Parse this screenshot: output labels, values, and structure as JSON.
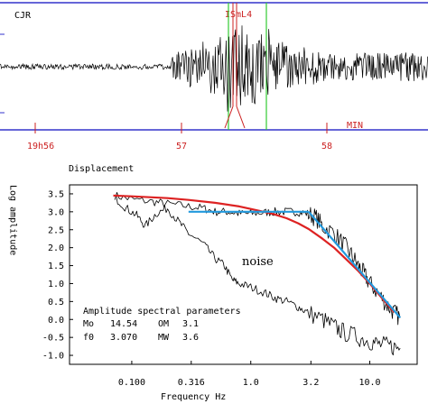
{
  "seismogram": {
    "station": "CJR",
    "pick_label": "ISmL4",
    "unit_label": "MIN",
    "time_ticks": [
      "19h56",
      "57",
      "58"
    ],
    "colors": {
      "trace": "#000000",
      "axis": "#3333cc",
      "tick": "#cc2222",
      "window": "#33cc33",
      "pick": "#cc2222"
    }
  },
  "chart_data": {
    "type": "line",
    "title": "Displacement",
    "xlabel": "Frequency  Hz",
    "ylabel": "Log  amplitude",
    "x_scale": "log",
    "xlim": [
      0.03,
      25
    ],
    "ylim": [
      -1.25,
      3.75
    ],
    "x_ticks": [
      "0.100",
      "0.316",
      "1.0",
      "3.2",
      "10.0"
    ],
    "y_ticks": [
      "3.5",
      "3.0",
      "2.5",
      "2.0",
      "1.5",
      "1.0",
      "0.5",
      "0.0",
      "-0.5",
      "-1.0"
    ],
    "series": [
      {
        "name": "signal-spectrum",
        "color": "#000000",
        "points": [
          [
            0.072,
            3.45
          ],
          [
            0.1,
            3.35
          ],
          [
            0.15,
            3.28
          ],
          [
            0.2,
            3.22
          ],
          [
            0.3,
            3.15
          ],
          [
            0.4,
            3.1
          ],
          [
            0.5,
            3.0
          ],
          [
            0.65,
            3.0
          ],
          [
            0.8,
            2.95
          ],
          [
            1.0,
            2.95
          ],
          [
            1.3,
            2.98
          ],
          [
            1.6,
            3.0
          ],
          [
            2.0,
            3.0
          ],
          [
            2.5,
            3.0
          ],
          [
            3.0,
            2.95
          ],
          [
            3.5,
            2.85
          ],
          [
            4.0,
            2.6
          ],
          [
            5.0,
            2.4
          ],
          [
            6.0,
            2.1
          ],
          [
            7.0,
            1.8
          ],
          [
            8.0,
            1.5
          ],
          [
            9.0,
            1.25
          ],
          [
            10.0,
            1.0
          ],
          [
            12.0,
            0.7
          ],
          [
            14.0,
            0.4
          ],
          [
            16.0,
            0.2
          ],
          [
            18.0,
            0.05
          ]
        ]
      },
      {
        "name": "noise",
        "color": "#000000",
        "points": [
          [
            0.072,
            3.4
          ],
          [
            0.09,
            3.1
          ],
          [
            0.11,
            2.9
          ],
          [
            0.13,
            2.6
          ],
          [
            0.16,
            2.95
          ],
          [
            0.2,
            3.1
          ],
          [
            0.25,
            2.7
          ],
          [
            0.3,
            2.4
          ],
          [
            0.4,
            2.1
          ],
          [
            0.5,
            1.7
          ],
          [
            0.6,
            1.5
          ],
          [
            0.7,
            1.1
          ],
          [
            0.8,
            1.0
          ],
          [
            1.0,
            0.9
          ],
          [
            1.3,
            0.75
          ],
          [
            1.6,
            0.6
          ],
          [
            2.0,
            0.5
          ],
          [
            2.5,
            0.35
          ],
          [
            3.0,
            0.2
          ],
          [
            4.0,
            0.0
          ],
          [
            5.0,
            -0.2
          ],
          [
            6.0,
            -0.35
          ],
          [
            8.0,
            -0.5
          ],
          [
            10.0,
            -0.6
          ],
          [
            12.0,
            -0.7
          ],
          [
            15.0,
            -0.75
          ],
          [
            18.0,
            -0.8
          ]
        ]
      },
      {
        "name": "model-fit",
        "color": "#dd2222",
        "points": [
          [
            0.07,
            3.45
          ],
          [
            0.1,
            3.43
          ],
          [
            0.2,
            3.38
          ],
          [
            0.3,
            3.33
          ],
          [
            0.5,
            3.25
          ],
          [
            0.8,
            3.15
          ],
          [
            1.0,
            3.08
          ],
          [
            1.5,
            2.95
          ],
          [
            2.0,
            2.82
          ],
          [
            2.5,
            2.68
          ],
          [
            3.07,
            2.52
          ],
          [
            4.0,
            2.25
          ],
          [
            5.0,
            2.0
          ],
          [
            6.0,
            1.75
          ],
          [
            8.0,
            1.35
          ],
          [
            10.0,
            1.0
          ],
          [
            13.0,
            0.55
          ],
          [
            16.0,
            0.2
          ]
        ]
      },
      {
        "name": "plateau-asymptote",
        "color": "#2299dd",
        "points": [
          [
            0.3,
            3.0
          ],
          [
            3.07,
            3.0
          ]
        ]
      },
      {
        "name": "decay-asymptote",
        "color": "#2299dd",
        "points": [
          [
            3.07,
            3.0
          ],
          [
            18.0,
            0.05
          ]
        ]
      }
    ],
    "annotation": "noise",
    "parameters": {
      "heading": "Amplitude spectral parameters",
      "rows": [
        {
          "k1": "Mo",
          "v1": "14.54",
          "k2": "OM",
          "v2": "3.1"
        },
        {
          "k1": "f0",
          "v1": "3.070",
          "k2": "MW",
          "v2": "3.6"
        }
      ]
    }
  }
}
